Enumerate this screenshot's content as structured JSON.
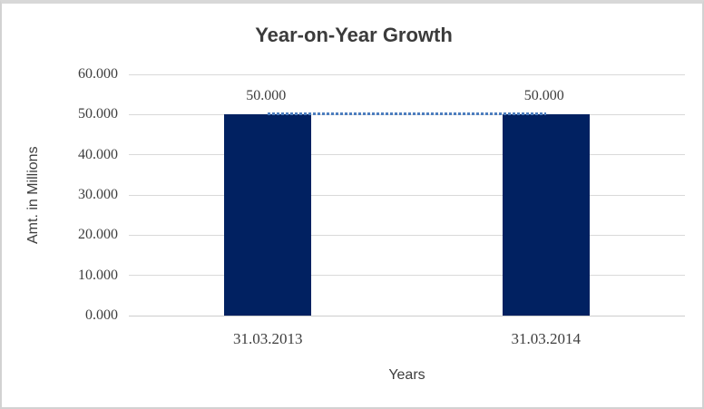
{
  "chart_data": {
    "type": "bar",
    "title": "Year-on-Year Growth",
    "xlabel": "Years",
    "ylabel": "Amt. in Millions",
    "categories": [
      "31.03.2013",
      "31.03.2014"
    ],
    "series": [
      {
        "name": "amount-bars",
        "type": "bar",
        "values": [
          50.0,
          50.0
        ],
        "labels": [
          "50.000",
          "50.000"
        ],
        "color": "#012161"
      },
      {
        "name": "trend-line",
        "type": "line",
        "values": [
          50.0,
          50.0
        ],
        "style": "dotted",
        "color": "#4d7ebf"
      }
    ],
    "ylim": [
      0,
      60
    ],
    "ytick_step": 10,
    "ytick_labels": [
      "0.000",
      "10.000",
      "20.000",
      "30.000",
      "40.000",
      "50.000",
      "60.000"
    ],
    "grid": true,
    "legend": "none",
    "colors": {
      "grid": "#d9d9d9",
      "text": "#3d3d3d",
      "title": "#3b3b3b",
      "frame_border": "#d2d2d2",
      "background": "#ffffff"
    }
  }
}
